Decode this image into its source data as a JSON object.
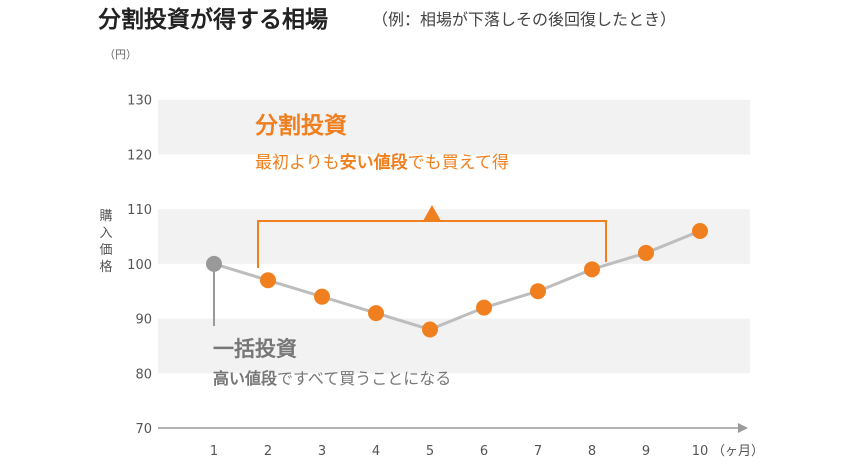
{
  "header": {
    "title": "分割投資が得する相場",
    "subtitle": "（例：相場が下落しその後回復したとき）"
  },
  "chart_data": {
    "type": "line",
    "x": [
      1,
      2,
      3,
      4,
      5,
      6,
      7,
      8,
      9,
      10
    ],
    "categories": [
      "1",
      "2",
      "3",
      "4",
      "5",
      "6",
      "7",
      "8",
      "9",
      "10"
    ],
    "values": [
      100,
      97,
      94,
      91,
      88,
      92,
      95,
      99,
      102,
      106
    ],
    "xlabel": "（ヶ月）",
    "ylabel": "購入価格",
    "y_unit": "（円）",
    "ylim": [
      70,
      140
    ],
    "yticks": [
      "70",
      "80",
      "90",
      "100",
      "110",
      "120",
      "130"
    ],
    "grid": "alternating horizontal bands",
    "series_colors": {
      "line": "#bdbdbd",
      "first_point": "#999999",
      "points": "#f07f1f"
    },
    "annotations": {
      "split": {
        "title": "分割投資",
        "text_before": "最初よりも",
        "text_bold": "安い値段",
        "text_after": "でも買えて得"
      },
      "lump": {
        "title": "一括投資",
        "text_bold": "高い値段",
        "text_after": "ですべて買うことになる"
      }
    }
  }
}
